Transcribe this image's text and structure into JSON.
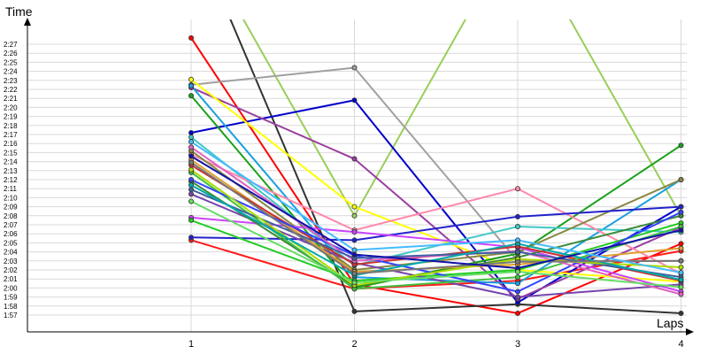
{
  "chart_data": {
    "type": "line",
    "xlabel": "Laps",
    "ylabel": "Time",
    "x": [
      1,
      2,
      3,
      4
    ],
    "x_tick_labels": [
      "1",
      "2",
      "3",
      "4"
    ],
    "y_tick_labels": [
      "1:57",
      "1:58",
      "1:59",
      "2:00",
      "2:01",
      "2:02",
      "2:03",
      "2:04",
      "2:05",
      "2:06",
      "2:07",
      "2:08",
      "2:09",
      "2:10",
      "2:11",
      "2:12",
      "2:13",
      "2:14",
      "2:15",
      "2:16",
      "2:17",
      "2:18",
      "2:19",
      "2:20",
      "2:21",
      "2:22",
      "2:23",
      "2:24",
      "2:25",
      "2:26",
      "2:27"
    ],
    "ylim_seconds": [
      116,
      148
    ],
    "grid": true,
    "legend": "none",
    "series": [
      {
        "color": "#ff0000",
        "values": [
          147.7,
          120.4,
          117.2,
          124.9
        ]
      },
      {
        "color": "#ff1a1a",
        "values": [
          125.3,
          119.9,
          120.8,
          124.1
        ]
      },
      {
        "color": "#333333",
        "values": [
          160.0,
          117.4,
          118.2,
          117.2
        ]
      },
      {
        "color": "#9acd5a",
        "values": [
          160.0,
          128.0,
          160.0,
          128.0
        ]
      },
      {
        "color": "#a0a0a0",
        "values": [
          142.5,
          144.4,
          123.0,
          123.0
        ]
      },
      {
        "color": "#0000cc",
        "values": [
          137.2,
          140.8,
          118.4,
          129.0
        ]
      },
      {
        "color": "#9a3fa0",
        "values": [
          142.2,
          134.3,
          118.8,
          126.7
        ]
      },
      {
        "color": "#ffff00",
        "values": [
          143.1,
          129.0,
          122.0,
          120.7
        ]
      },
      {
        "color": "#1aa01a",
        "values": [
          141.3,
          120.0,
          123.8,
          135.8
        ]
      },
      {
        "color": "#1a9fe0",
        "values": [
          142.4,
          121.2,
          120.5,
          132.0
        ]
      },
      {
        "color": "#40c8c8",
        "values": [
          136.7,
          122.5,
          126.8,
          126.2
        ]
      },
      {
        "color": "#ff88aa",
        "values": [
          134.8,
          126.4,
          131.0,
          121.6
        ]
      },
      {
        "color": "#888844",
        "values": [
          135.2,
          122.0,
          124.0,
          132.0
        ]
      },
      {
        "color": "#2222cc",
        "values": [
          125.6,
          125.3,
          127.9,
          129.0
        ]
      },
      {
        "color": "#cc44ff",
        "values": [
          127.8,
          126.2,
          124.5,
          119.6
        ]
      },
      {
        "color": "#22cc22",
        "values": [
          127.5,
          120.8,
          122.0,
          127.2
        ]
      },
      {
        "color": "#7744aa",
        "values": [
          130.4,
          122.8,
          119.0,
          120.4
        ]
      },
      {
        "color": "#3a8a3a",
        "values": [
          131.8,
          120.2,
          123.4,
          128.0
        ]
      },
      {
        "color": "#e0a030",
        "values": [
          134.2,
          121.8,
          122.6,
          124.4
        ]
      },
      {
        "color": "#cc3333",
        "values": [
          133.6,
          122.6,
          124.6,
          120.8
        ]
      },
      {
        "color": "#40c040",
        "values": [
          132.8,
          119.9,
          121.2,
          126.8
        ]
      },
      {
        "color": "#3344ff",
        "values": [
          132.0,
          123.6,
          119.6,
          128.4
        ]
      },
      {
        "color": "#e060c0",
        "values": [
          135.6,
          123.0,
          124.1,
          119.3
        ]
      },
      {
        "color": "#4060a0",
        "values": [
          130.9,
          123.3,
          124.0,
          121.2
        ]
      },
      {
        "color": "#aadd00",
        "values": [
          133.1,
          120.3,
          123.2,
          122.3
        ]
      },
      {
        "color": "#00aaaa",
        "values": [
          131.4,
          121.4,
          124.9,
          120.9
        ]
      },
      {
        "color": "#777777",
        "values": [
          133.9,
          121.6,
          122.9,
          123.0
        ]
      },
      {
        "color": "#1111aa",
        "values": [
          134.6,
          123.7,
          122.2,
          126.4
        ]
      },
      {
        "color": "#44bbff",
        "values": [
          136.2,
          124.2,
          125.3,
          121.7
        ]
      },
      {
        "color": "#66dd66",
        "values": [
          129.6,
          120.6,
          121.8,
          120.1
        ]
      }
    ]
  }
}
